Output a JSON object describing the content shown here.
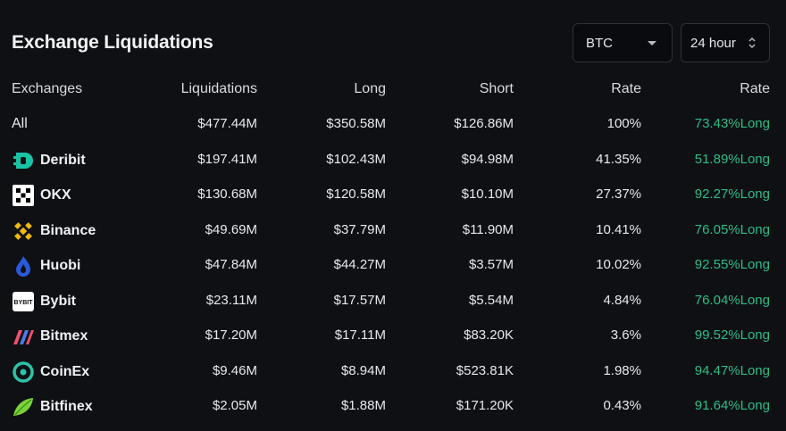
{
  "title": "Exchange Liquidations",
  "filters": {
    "coin": "BTC",
    "period": "24 hour"
  },
  "columns": [
    "Exchanges",
    "Liquidations",
    "Long",
    "Short",
    "Rate",
    "Rate"
  ],
  "rows": [
    {
      "name": "All",
      "icon": "",
      "liquidations": "$477.44M",
      "long": "$350.58M",
      "short": "$126.86M",
      "rate": "100%",
      "long_rate": "73.43%Long"
    },
    {
      "name": "Deribit",
      "icon": "deribit-icon",
      "liquidations": "$197.41M",
      "long": "$102.43M",
      "short": "$94.98M",
      "rate": "41.35%",
      "long_rate": "51.89%Long"
    },
    {
      "name": "OKX",
      "icon": "okx-icon",
      "liquidations": "$130.68M",
      "long": "$120.58M",
      "short": "$10.10M",
      "rate": "27.37%",
      "long_rate": "92.27%Long"
    },
    {
      "name": "Binance",
      "icon": "binance-icon",
      "liquidations": "$49.69M",
      "long": "$37.79M",
      "short": "$11.90M",
      "rate": "10.41%",
      "long_rate": "76.05%Long"
    },
    {
      "name": "Huobi",
      "icon": "huobi-icon",
      "liquidations": "$47.84M",
      "long": "$44.27M",
      "short": "$3.57M",
      "rate": "10.02%",
      "long_rate": "92.55%Long"
    },
    {
      "name": "Bybit",
      "icon": "bybit-icon",
      "liquidations": "$23.11M",
      "long": "$17.57M",
      "short": "$5.54M",
      "rate": "4.84%",
      "long_rate": "76.04%Long"
    },
    {
      "name": "Bitmex",
      "icon": "bitmex-icon",
      "liquidations": "$17.20M",
      "long": "$17.11M",
      "short": "$83.20K",
      "rate": "3.6%",
      "long_rate": "99.52%Long"
    },
    {
      "name": "CoinEx",
      "icon": "coinex-icon",
      "liquidations": "$9.46M",
      "long": "$8.94M",
      "short": "$523.81K",
      "rate": "1.98%",
      "long_rate": "94.47%Long"
    },
    {
      "name": "Bitfinex",
      "icon": "bitfinex-icon",
      "liquidations": "$2.05M",
      "long": "$1.88M",
      "short": "$171.20K",
      "rate": "0.43%",
      "long_rate": "91.64%Long"
    }
  ],
  "colors": {
    "background": "#0e1014",
    "long_green": "#2fbd85",
    "deribit": "#19c3a6",
    "binance": "#f0b90b",
    "coinex": "#2dc3a8",
    "bitfinex": "#7ad23b"
  }
}
